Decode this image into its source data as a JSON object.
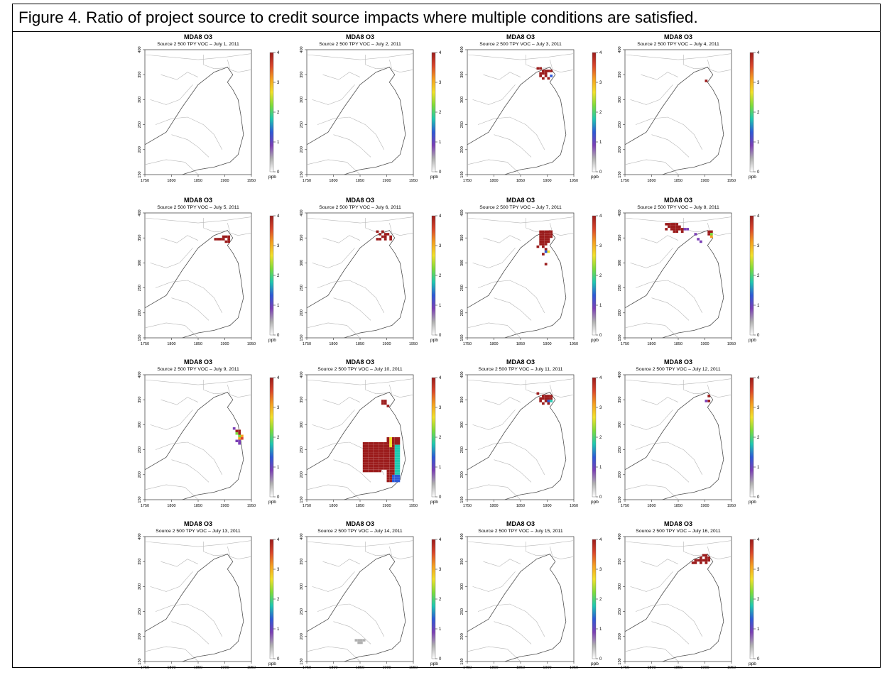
{
  "caption": "Figure 4. Ratio of project source to credit source impacts where multiple conditions are satisfied.",
  "chart_data": {
    "type": "heatmap",
    "grid_rows": 4,
    "grid_cols": 4,
    "title": "MDA8 O3",
    "xlim": [
      1750,
      1950
    ],
    "ylim": [
      150,
      400
    ],
    "x_ticks": [
      "1750",
      "1800",
      "1850",
      "1900",
      "1950"
    ],
    "y_ticks": [
      "150",
      "200",
      "250",
      "300",
      "350",
      "400"
    ],
    "colorbar": {
      "range": [
        0,
        4
      ],
      "ticks": [
        "0",
        "1",
        "2",
        "3",
        "4"
      ],
      "unit_label": "ppb",
      "colors": [
        "#ffffff",
        "#b0b0b0",
        "#7b3fb5",
        "#2d59d6",
        "#1ec8b0",
        "#7ddc3a",
        "#f2e12a",
        "#f5a020",
        "#d9452a",
        "#9b1c1c"
      ]
    },
    "panels": [
      {
        "subtitle": "Source 2 500 TPY VOC – July 1, 2011",
        "cells": []
      },
      {
        "subtitle": "Source 2 500 TPY VOC – July 2, 2011",
        "cells": []
      },
      {
        "subtitle": "Source 2 500 TPY VOC – July 3, 2011",
        "cells": [
          [
            1880,
            360,
            4
          ],
          [
            1885,
            360,
            4
          ],
          [
            1890,
            355,
            4
          ],
          [
            1895,
            355,
            4
          ],
          [
            1900,
            355,
            4
          ],
          [
            1905,
            355,
            4
          ],
          [
            1885,
            350,
            4
          ],
          [
            1890,
            350,
            4
          ],
          [
            1895,
            350,
            4
          ],
          [
            1885,
            345,
            4
          ],
          [
            1895,
            345,
            4
          ],
          [
            1890,
            340,
            4
          ],
          [
            1900,
            340,
            4
          ],
          [
            1905,
            345,
            1.5
          ]
        ]
      },
      {
        "subtitle": "Source 2 500 TPY VOC – July 4, 2011",
        "cells": [
          [
            1900,
            335,
            4
          ]
        ]
      },
      {
        "subtitle": "Source 2 500 TPY VOC – July 5, 2011",
        "cells": [
          [
            1895,
            350,
            4
          ],
          [
            1900,
            350,
            4
          ],
          [
            1905,
            345,
            4
          ],
          [
            1880,
            345,
            4
          ],
          [
            1885,
            345,
            4
          ],
          [
            1890,
            345,
            4
          ],
          [
            1895,
            345,
            4
          ],
          [
            1900,
            340,
            4
          ],
          [
            1905,
            340,
            4
          ],
          [
            1905,
            350,
            4
          ]
        ]
      },
      {
        "subtitle": "Source 2 500 TPY VOC – July 6, 2011",
        "cells": [
          [
            1880,
            360,
            4
          ],
          [
            1890,
            360,
            4
          ],
          [
            1895,
            355,
            4
          ],
          [
            1900,
            355,
            4
          ],
          [
            1885,
            355,
            4
          ],
          [
            1905,
            350,
            4
          ],
          [
            1890,
            350,
            4
          ],
          [
            1895,
            350,
            4
          ],
          [
            1880,
            345,
            4
          ],
          [
            1885,
            345,
            4
          ],
          [
            1895,
            345,
            4
          ],
          [
            1905,
            345,
            4
          ]
        ]
      },
      {
        "subtitle": "Source 2 500 TPY VOC – July 7, 2011",
        "cells": [
          [
            1885,
            360,
            4
          ],
          [
            1890,
            360,
            4
          ],
          [
            1895,
            360,
            4
          ],
          [
            1900,
            360,
            4
          ],
          [
            1905,
            360,
            4
          ],
          [
            1885,
            355,
            4
          ],
          [
            1890,
            355,
            4
          ],
          [
            1895,
            355,
            4
          ],
          [
            1900,
            355,
            4
          ],
          [
            1905,
            355,
            4
          ],
          [
            1885,
            350,
            4
          ],
          [
            1890,
            350,
            4
          ],
          [
            1895,
            350,
            4
          ],
          [
            1900,
            350,
            4
          ],
          [
            1905,
            350,
            4
          ],
          [
            1885,
            345,
            4
          ],
          [
            1890,
            345,
            4
          ],
          [
            1895,
            345,
            4
          ],
          [
            1900,
            345,
            4
          ],
          [
            1885,
            340,
            4
          ],
          [
            1890,
            340,
            4
          ],
          [
            1895,
            340,
            4
          ],
          [
            1900,
            340,
            4
          ],
          [
            1885,
            335,
            4
          ],
          [
            1890,
            335,
            4
          ],
          [
            1895,
            335,
            4
          ],
          [
            1880,
            330,
            4
          ],
          [
            1890,
            330,
            4
          ],
          [
            1895,
            325,
            4
          ],
          [
            1900,
            320,
            2.5
          ],
          [
            1895,
            320,
            1.5
          ],
          [
            1890,
            315,
            4
          ],
          [
            1895,
            295,
            4
          ]
        ]
      },
      {
        "subtitle": "Source 2 500 TPY VOC – July 8, 2011",
        "cells": [
          [
            1825,
            375,
            4
          ],
          [
            1830,
            375,
            4
          ],
          [
            1835,
            375,
            4
          ],
          [
            1840,
            375,
            4
          ],
          [
            1845,
            375,
            4
          ],
          [
            1830,
            370,
            4
          ],
          [
            1835,
            370,
            4
          ],
          [
            1840,
            370,
            4
          ],
          [
            1845,
            370,
            4
          ],
          [
            1850,
            370,
            4
          ],
          [
            1835,
            365,
            4
          ],
          [
            1840,
            365,
            4
          ],
          [
            1845,
            365,
            4
          ],
          [
            1850,
            365,
            4
          ],
          [
            1855,
            365,
            4
          ],
          [
            1840,
            360,
            4
          ],
          [
            1845,
            360,
            4
          ],
          [
            1855,
            360,
            4
          ],
          [
            1825,
            365,
            4
          ],
          [
            1860,
            365,
            1
          ],
          [
            1865,
            365,
            1
          ],
          [
            1880,
            355,
            1
          ],
          [
            1885,
            345,
            1
          ],
          [
            1890,
            340,
            0.9
          ],
          [
            1905,
            360,
            4
          ],
          [
            1910,
            360,
            4
          ],
          [
            1905,
            355,
            4
          ],
          [
            1910,
            355,
            2.3
          ],
          [
            1910,
            350,
            3.2
          ]
        ]
      },
      {
        "subtitle": "Source 2 500 TPY VOC – July 9, 2011",
        "cells": [
          [
            1915,
            290,
            1
          ],
          [
            1920,
            285,
            4
          ],
          [
            1925,
            285,
            4
          ],
          [
            1925,
            280,
            4
          ],
          [
            1920,
            280,
            2
          ],
          [
            1925,
            275,
            2.3
          ],
          [
            1930,
            275,
            3.3
          ],
          [
            1925,
            270,
            3
          ],
          [
            1930,
            270,
            3.5
          ],
          [
            1920,
            265,
            1
          ],
          [
            1925,
            265,
            1
          ],
          [
            1925,
            260,
            0.9
          ]
        ]
      },
      {
        "subtitle": "Source 2 500 TPY VOC – July 10, 2011",
        "cells": [
          [
            1890,
            345,
            4
          ],
          [
            1895,
            345,
            4
          ],
          [
            1895,
            340,
            4
          ],
          [
            1900,
            335,
            4
          ],
          [
            1890,
            340,
            4
          ]
        ],
        "blob": true
      },
      {
        "subtitle": "Source 2 500 TPY VOC – July 11, 2011",
        "cells": [
          [
            1880,
            360,
            4
          ],
          [
            1890,
            355,
            4
          ],
          [
            1895,
            355,
            4
          ],
          [
            1900,
            355,
            4
          ],
          [
            1905,
            355,
            4
          ],
          [
            1885,
            350,
            4
          ],
          [
            1890,
            350,
            4
          ],
          [
            1895,
            350,
            4
          ],
          [
            1900,
            350,
            4
          ],
          [
            1905,
            350,
            4
          ],
          [
            1885,
            345,
            4
          ],
          [
            1895,
            345,
            4
          ],
          [
            1900,
            345,
            1.5
          ],
          [
            1905,
            345,
            1.8
          ],
          [
            1890,
            340,
            4
          ],
          [
            1900,
            340,
            4
          ]
        ]
      },
      {
        "subtitle": "Source 2 500 TPY VOC – July 12, 2011",
        "cells": [
          [
            1905,
            355,
            4
          ],
          [
            1905,
            345,
            4
          ],
          [
            1900,
            345,
            0.9
          ]
        ]
      },
      {
        "subtitle": "Source 2 500 TPY VOC – July 13, 2011",
        "cells": []
      },
      {
        "subtitle": "Source 2 500 TPY VOC – July 14, 2011",
        "cells": [
          [
            1840,
            190,
            0.3
          ],
          [
            1845,
            190,
            0.3
          ],
          [
            1850,
            190,
            0.3
          ],
          [
            1855,
            190,
            0.3
          ],
          [
            1845,
            185,
            0.3
          ],
          [
            1850,
            185,
            0.3
          ]
        ]
      },
      {
        "subtitle": "Source 2 500 TPY VOC – July 15, 2011",
        "cells": []
      },
      {
        "subtitle": "Source 2 500 TPY VOC – July 16, 2011",
        "cells": [
          [
            1895,
            360,
            4
          ],
          [
            1900,
            360,
            4
          ],
          [
            1900,
            355,
            4
          ],
          [
            1905,
            355,
            4
          ],
          [
            1890,
            355,
            4
          ],
          [
            1880,
            350,
            4
          ],
          [
            1885,
            350,
            4
          ],
          [
            1890,
            350,
            4
          ],
          [
            1895,
            350,
            4
          ],
          [
            1900,
            350,
            4
          ],
          [
            1905,
            350,
            4
          ],
          [
            1875,
            345,
            4
          ],
          [
            1880,
            345,
            4
          ],
          [
            1890,
            345,
            4
          ],
          [
            1900,
            345,
            4
          ]
        ]
      }
    ]
  }
}
